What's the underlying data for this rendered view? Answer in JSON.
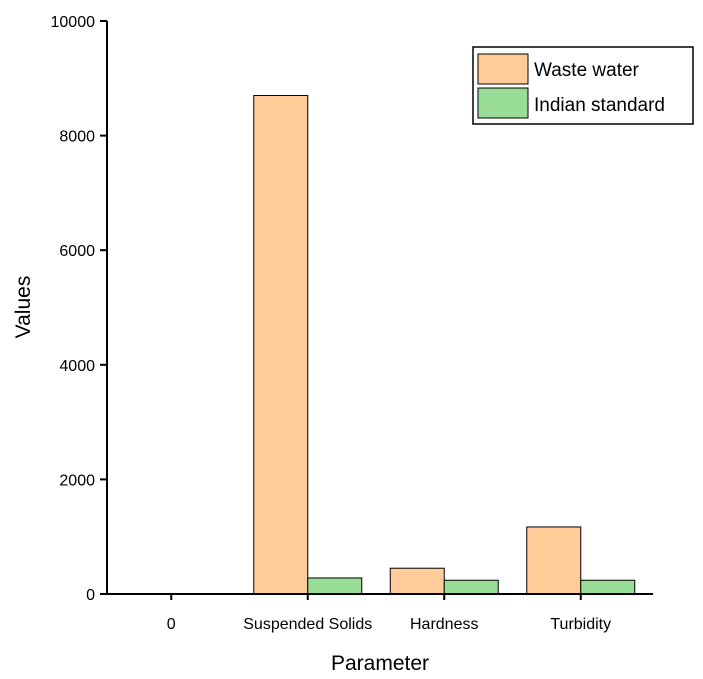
{
  "chart_data": {
    "type": "bar",
    "title": "",
    "xlabel": "Parameter",
    "ylabel": "Values",
    "categories": [
      "0",
      "Suspended Solids",
      "Hardness",
      "Turbidity"
    ],
    "series": [
      {
        "name": "Waste water",
        "values": [
          0,
          8700,
          450,
          1170
        ],
        "color": "#FFCC99"
      },
      {
        "name": "Indian standard",
        "values": [
          0,
          280,
          240,
          240
        ],
        "color": "#99DD99"
      }
    ],
    "ylim": [
      0,
      10000
    ],
    "yticks": [
      0,
      2000,
      4000,
      6000,
      8000,
      10000
    ],
    "grid": false,
    "legend_position": "top-right"
  }
}
